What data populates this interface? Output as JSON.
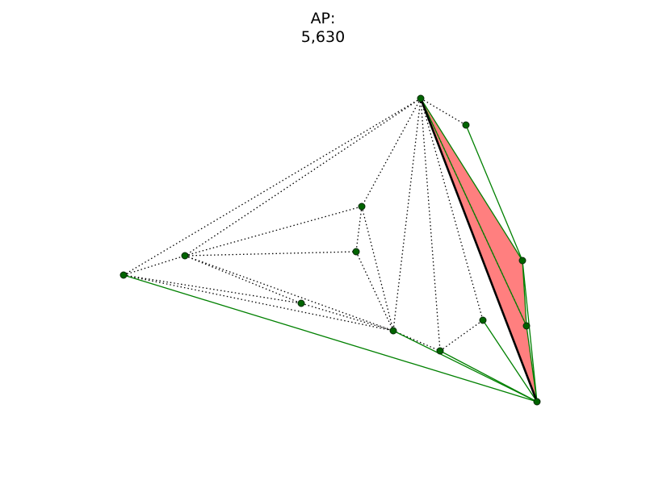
{
  "title": {
    "line1": "AP:",
    "line2": "5,630"
  },
  "colors": {
    "background": "#ffffff",
    "node_fill": "#006400",
    "node_stroke": "#0a2a0a",
    "green_edge": "#008000",
    "dotted_edge": "#000000",
    "highlight_edge": "#000000",
    "polygon_fill": "#ff7f7f"
  }
}
